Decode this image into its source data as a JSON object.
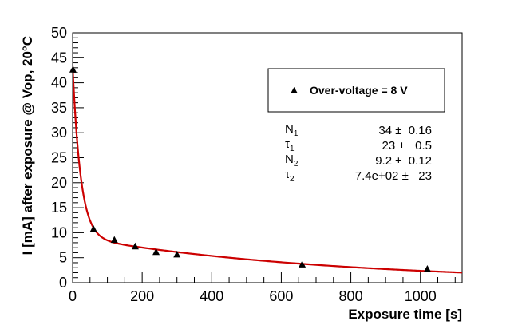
{
  "chart_data": {
    "type": "scatter",
    "title": "",
    "xlabel": "Exposure time [s]",
    "ylabel": "I [mA] after exposure @ Vop, 20°C",
    "xlim": [
      0,
      1120
    ],
    "ylim": [
      0,
      50
    ],
    "x_ticks": [
      0,
      200,
      400,
      600,
      800,
      1000
    ],
    "y_ticks": [
      0,
      5,
      10,
      15,
      20,
      25,
      30,
      35,
      40,
      45,
      50
    ],
    "grid": false,
    "legend_position": "top-right",
    "series": [
      {
        "name": "Over-voltage = 8 V",
        "marker": "triangle",
        "color": "#000000",
        "x": [
          1,
          60,
          120,
          180,
          240,
          300,
          660,
          1020
        ],
        "y": [
          42.7,
          10.8,
          8.6,
          7.3,
          6.2,
          5.7,
          3.7,
          2.8
        ]
      }
    ],
    "fit": {
      "model": "N1*exp(-t/tau1) + N2*exp(-t/tau2)",
      "color": "#cc0000",
      "params": {
        "N1": 34,
        "tau1": 23,
        "N2": 9.2,
        "tau2": 740
      }
    },
    "stats_box": [
      {
        "name": "N",
        "sub": "1",
        "value": "34 ±  0.16"
      },
      {
        "name": "τ",
        "sub": "1",
        "value": "23 ±   0.5"
      },
      {
        "name": "N",
        "sub": "2",
        "value": "9.2 ±  0.12"
      },
      {
        "name": "τ",
        "sub": "2",
        "value": "7.4e+02 ±   23"
      }
    ]
  }
}
